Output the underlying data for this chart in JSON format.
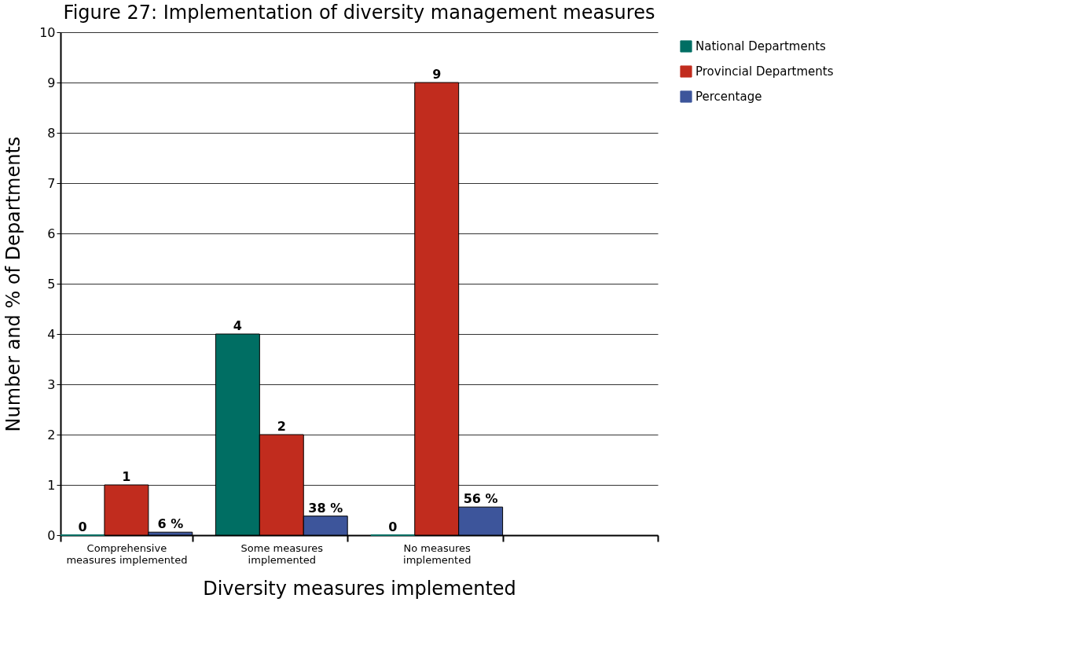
{
  "chart_data": {
    "type": "bar",
    "title": "Figure 27:  Implementation of diversity management measures",
    "xlabel": "Diversity measures implemented",
    "ylabel": "Number and % of Departments",
    "categories": [
      "Comprehensive\nmeasures implemented",
      "Some measures\nimplemented",
      "No measures\nimplemented",
      null
    ],
    "series": [
      {
        "name": "National Departments",
        "color": "#006e63",
        "values": [
          0,
          4,
          0,
          null
        ],
        "value_labels": [
          "0",
          "4",
          "0",
          null
        ]
      },
      {
        "name": "Provincial Departments",
        "color": "#c12c1e",
        "values": [
          1,
          2,
          9,
          null
        ],
        "value_labels": [
          "1",
          "2",
          "9",
          null
        ]
      },
      {
        "name": "Percentage",
        "color": "#3d559b",
        "values": [
          0.06,
          0.38,
          0.56,
          null
        ],
        "value_labels": [
          "6 %",
          "38 %",
          "56 %",
          null
        ]
      }
    ],
    "ylim": [
      0,
      10
    ],
    "yticks": [
      0,
      1,
      2,
      3,
      4,
      5,
      6,
      7,
      8,
      9,
      10
    ],
    "grid": "y",
    "legend": "top right"
  }
}
